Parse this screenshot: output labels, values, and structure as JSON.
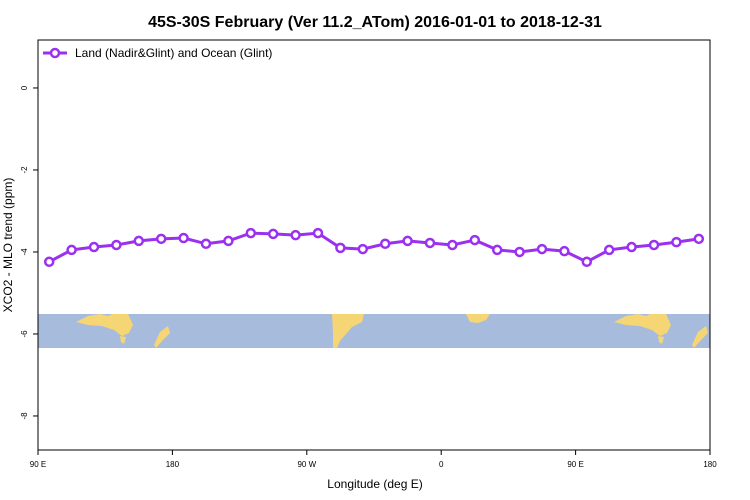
{
  "chart_data": {
    "type": "line",
    "title": "45S-30S February (Ver 11.2_ATom)   2016-01-01 to 2018-12-31",
    "xlabel": "Longitude (deg E)",
    "ylabel": "XCO2 - MLO trend (ppm)",
    "x": [
      97.5,
      112.5,
      127.5,
      142.5,
      157.5,
      172.5,
      187.5,
      202.5,
      217.5,
      232.5,
      247.5,
      262.5,
      277.5,
      292.5,
      307.5,
      322.5,
      337.5,
      352.5,
      367.5,
      382.5,
      397.5,
      412.5,
      427.5,
      442.5,
      457.5,
      472.5,
      487.5,
      502.5,
      517.5,
      532.5
    ],
    "series": [
      {
        "name": "Land (Nadir&Glint) and Ocean (Glint)",
        "color": "#9b30f0",
        "values": [
          -4.24,
          -3.95,
          -3.88,
          -3.83,
          -3.73,
          -3.68,
          -3.66,
          -3.8,
          -3.73,
          -3.54,
          -3.56,
          -3.59,
          -3.54,
          -3.9,
          -3.93,
          -3.8,
          -3.73,
          -3.78,
          -3.83,
          -3.71,
          -3.95,
          -4.0,
          -3.93,
          -3.98,
          -4.24,
          -3.95,
          -3.88,
          -3.83,
          -3.76,
          -3.68
        ]
      }
    ],
    "xlim": [
      90,
      540
    ],
    "xticks": [
      {
        "value": 90,
        "label": "90 E"
      },
      {
        "value": 180,
        "label": "180"
      },
      {
        "value": 270,
        "label": "90 W"
      },
      {
        "value": 360,
        "label": "0"
      },
      {
        "value": 450,
        "label": "90 E"
      },
      {
        "value": 540,
        "label": "180"
      }
    ],
    "ylim": [
      -8.83,
      1.17
    ],
    "yticks": [
      0,
      -2,
      -4,
      -6,
      -8
    ],
    "legend": "top-left"
  }
}
